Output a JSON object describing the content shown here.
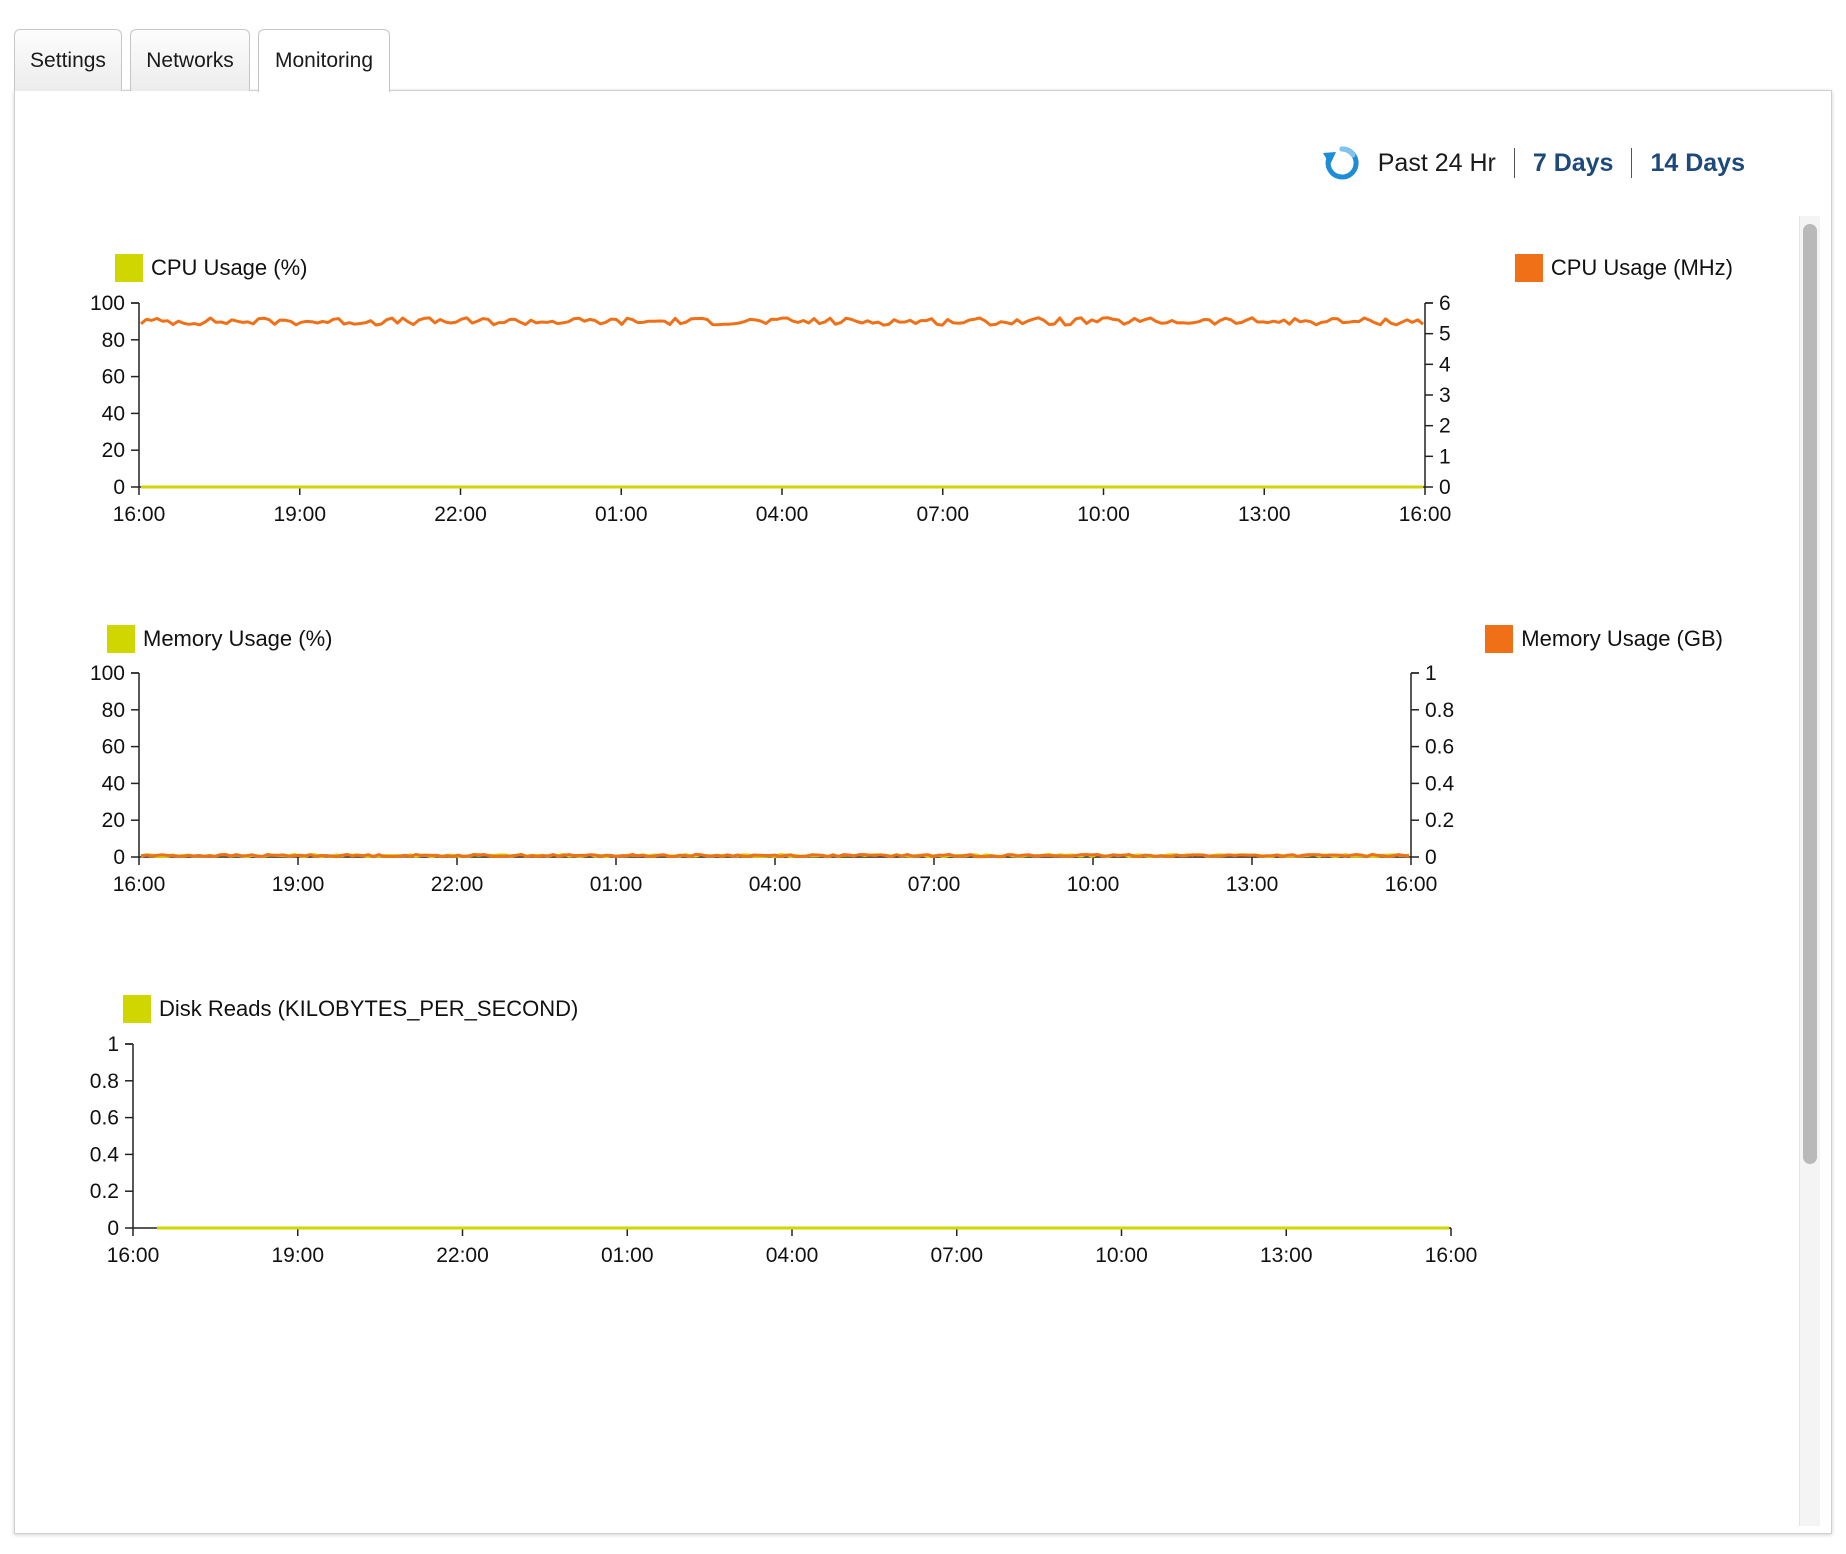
{
  "tabs": [
    {
      "label": "Settings",
      "active": false
    },
    {
      "label": "Networks",
      "active": false
    },
    {
      "label": "Monitoring",
      "active": true
    }
  ],
  "time_range": {
    "refresh_icon": "refresh-icon",
    "current": "Past 24 Hr",
    "options": [
      "7 Days",
      "14 Days"
    ]
  },
  "colors": {
    "primary_series": "#cfd600",
    "secondary_series": "#f07017",
    "link": "#1d4a7a",
    "refresh": "#1f8dd6"
  },
  "chart_data": [
    {
      "type": "line",
      "legend_left": "CPU Usage (%)",
      "legend_right": "CPU Usage (MHz)",
      "x": [
        "16:00",
        "19:00",
        "22:00",
        "01:00",
        "04:00",
        "07:00",
        "10:00",
        "13:00",
        "16:00"
      ],
      "y_left": {
        "ticks": [
          "100",
          "80",
          "60",
          "40",
          "20",
          "0"
        ],
        "ylim": [
          0,
          100
        ]
      },
      "y_right": {
        "ticks": [
          "6",
          "5",
          "4",
          "3",
          "2",
          "1",
          "0"
        ],
        "ylim": [
          0,
          6
        ]
      },
      "series": [
        {
          "name": "CPU Usage (%)",
          "axis": "left",
          "color": "#cfd600",
          "constant": 0
        },
        {
          "name": "CPU Usage (MHz)",
          "axis": "right",
          "color": "#f07017",
          "mean": 5.4,
          "jitter": 0.12
        }
      ]
    },
    {
      "type": "line",
      "legend_left": "Memory Usage (%)",
      "legend_right": "Memory Usage (GB)",
      "x": [
        "16:00",
        "19:00",
        "22:00",
        "01:00",
        "04:00",
        "07:00",
        "10:00",
        "13:00",
        "16:00"
      ],
      "y_left": {
        "ticks": [
          "100",
          "80",
          "60",
          "40",
          "20",
          "0"
        ],
        "ylim": [
          0,
          100
        ]
      },
      "y_right": {
        "ticks": [
          "1",
          "0.8",
          "0.6",
          "0.4",
          "0.2",
          "0"
        ],
        "ylim": [
          0,
          1
        ]
      },
      "series": [
        {
          "name": "Memory Usage (%)",
          "axis": "left",
          "color": "#cfd600",
          "mean": 0.8,
          "jitter": 0.6
        },
        {
          "name": "Memory Usage (GB)",
          "axis": "right",
          "color": "#f07017",
          "mean": 0.008,
          "jitter": 0.006
        }
      ]
    },
    {
      "type": "line",
      "legend_left": "Disk Reads (KILOBYTES_PER_SECOND)",
      "legend_right": "",
      "x": [
        "16:00",
        "19:00",
        "22:00",
        "01:00",
        "04:00",
        "07:00",
        "10:00",
        "13:00",
        "16:00"
      ],
      "y_left": {
        "ticks": [
          "1",
          "0.8",
          "0.6",
          "0.4",
          "0.2",
          "0"
        ],
        "ylim": [
          0,
          1
        ]
      },
      "y_right": null,
      "series": [
        {
          "name": "Disk Reads (KILOBYTES_PER_SECOND)",
          "axis": "left",
          "color": "#cfd600",
          "constant": 0
        }
      ]
    }
  ]
}
